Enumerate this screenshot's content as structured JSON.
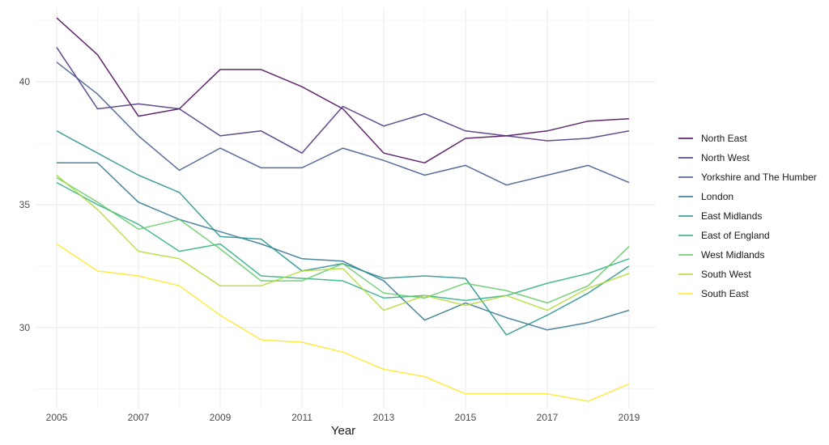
{
  "chart_data": {
    "type": "line",
    "title": "",
    "xlabel": "Year",
    "ylabel": "",
    "x": [
      2005,
      2006,
      2007,
      2008,
      2009,
      2010,
      2011,
      2012,
      2013,
      2014,
      2015,
      2016,
      2017,
      2018,
      2019
    ],
    "xlim": [
      2005,
      2019
    ],
    "ylim": [
      26.7,
      43.0
    ],
    "x_ticks": [
      2005,
      2007,
      2009,
      2011,
      2013,
      2015,
      2017,
      2019
    ],
    "y_ticks": [
      30,
      35,
      40
    ],
    "grid": true,
    "legend_position": "right",
    "series": [
      {
        "name": "North East",
        "color": "#440154",
        "values": [
          42.6,
          41.1,
          38.6,
          38.9,
          40.5,
          40.5,
          39.8,
          38.9,
          37.1,
          36.7,
          37.7,
          37.8,
          38.0,
          38.4,
          38.5
        ]
      },
      {
        "name": "North West",
        "color": "#472d7b",
        "values": [
          41.4,
          38.9,
          39.1,
          38.9,
          37.8,
          38.0,
          37.1,
          39.0,
          38.2,
          38.7,
          38.0,
          37.8,
          37.6,
          37.7,
          38.0
        ]
      },
      {
        "name": "Yorkshire and The Humber",
        "color": "#3b528b",
        "values": [
          40.8,
          39.5,
          37.8,
          36.4,
          37.3,
          36.5,
          36.5,
          37.3,
          36.8,
          36.2,
          36.6,
          35.8,
          36.2,
          36.6,
          35.9
        ]
      },
      {
        "name": "London",
        "color": "#2c728e",
        "values": [
          36.7,
          36.7,
          35.1,
          34.4,
          33.9,
          33.4,
          32.8,
          32.7,
          31.9,
          30.3,
          31.0,
          30.4,
          29.9,
          30.2,
          30.7
        ]
      },
      {
        "name": "East Midlands",
        "color": "#21918c",
        "values": [
          38.0,
          37.1,
          36.2,
          35.5,
          33.7,
          33.6,
          32.3,
          32.6,
          32.0,
          32.1,
          32.0,
          29.7,
          30.5,
          31.4,
          32.5
        ]
      },
      {
        "name": "East of England",
        "color": "#28ae80",
        "values": [
          35.9,
          35.0,
          34.2,
          33.1,
          33.4,
          32.1,
          32.0,
          31.9,
          31.2,
          31.3,
          31.1,
          31.3,
          31.8,
          32.2,
          32.8
        ]
      },
      {
        "name": "West Midlands",
        "color": "#5ec962",
        "values": [
          36.1,
          35.1,
          34.0,
          34.4,
          33.2,
          31.9,
          31.9,
          32.6,
          31.4,
          31.2,
          31.8,
          31.5,
          31.0,
          31.7,
          33.3
        ]
      },
      {
        "name": "South West",
        "color": "#addc30",
        "values": [
          36.2,
          34.8,
          33.1,
          32.8,
          31.7,
          31.7,
          32.3,
          32.4,
          30.7,
          31.3,
          30.9,
          31.3,
          30.7,
          31.6,
          32.2
        ]
      },
      {
        "name": "South East",
        "color": "#fde725",
        "values": [
          33.4,
          32.3,
          32.1,
          31.7,
          30.5,
          29.5,
          29.4,
          29.0,
          28.3,
          28.0,
          27.3,
          27.3,
          27.3,
          27.0,
          27.7
        ]
      }
    ]
  }
}
